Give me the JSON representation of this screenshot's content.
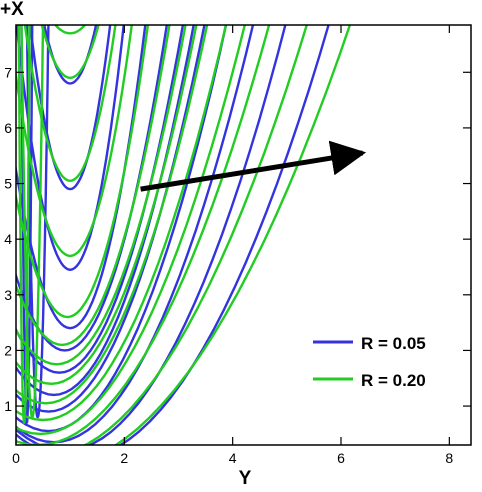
{
  "chart_data": {
    "type": "line",
    "xlabel": "Y",
    "ylabel": "+X",
    "xlim": [
      0,
      8.4
    ],
    "ylim": [
      0.3,
      7.85
    ],
    "x_ticks": [
      "0",
      "2",
      "4",
      "6",
      "8"
    ],
    "y_ticks": [
      "1",
      "2",
      "3",
      "4",
      "5",
      "6",
      "7"
    ],
    "x_tick_values": [
      0,
      2,
      4,
      6,
      8
    ],
    "y_tick_values": [
      1,
      2,
      3,
      4,
      5,
      6,
      7
    ],
    "grid": false,
    "legend_position": "bottom-right",
    "annotation": "arrow pointing up-right, from (2.3, 4.9) to (6.4, 5.55)",
    "series": [
      {
        "name": "R = 0.05",
        "color": "#3333e0",
        "curves": [
          {
            "apex": [
              0.2,
              0.7
            ],
            "half_width_top": 0.1
          },
          {
            "apex": [
              0.4,
              0.8
            ],
            "half_width_top": 0.2
          },
          {
            "apex": [
              1.0,
              6.8
            ],
            "half_width_top": 0.5
          },
          {
            "apex": [
              1.0,
              4.9
            ],
            "half_width_top": 0.75
          },
          {
            "apex": [
              1.0,
              3.45
            ],
            "half_width_top": 1.0
          },
          {
            "apex": [
              1.0,
              2.4
            ],
            "half_width_top": 1.4
          },
          {
            "apex": [
              0.9,
              2.0
            ],
            "half_width_top": 1.9
          },
          {
            "apex": [
              0.8,
              1.6
            ],
            "half_width_top": 2.3
          },
          {
            "apex": [
              0.7,
              1.2
            ],
            "half_width_top": 2.6
          },
          {
            "apex": [
              0.6,
              0.9
            ],
            "half_width_top": 2.9
          },
          {
            "apex": [
              0.6,
              0.55
            ],
            "half_width_top": 3.3
          },
          {
            "apex": [
              0.7,
              0.35
            ],
            "half_width_top": 3.7
          },
          {
            "apex": [
              0.9,
              0.2
            ],
            "half_width_top": 4.1
          },
          {
            "apex": [
              1.1,
              0.05
            ],
            "half_width_top": 4.7
          }
        ]
      },
      {
        "name": "R = 0.20",
        "color": "#22cc22",
        "curves": [
          {
            "apex": [
              0.15,
              0.7
            ],
            "half_width_top": 0.1
          },
          {
            "apex": [
              0.3,
              0.8
            ],
            "half_width_top": 0.2
          },
          {
            "apex": [
              1.0,
              7.7
            ],
            "half_width_top": 0.35
          },
          {
            "apex": [
              1.0,
              6.9
            ],
            "half_width_top": 0.55
          },
          {
            "apex": [
              1.0,
              5.05
            ],
            "half_width_top": 0.85
          },
          {
            "apex": [
              1.0,
              3.7
            ],
            "half_width_top": 1.15
          },
          {
            "apex": [
              0.95,
              2.6
            ],
            "half_width_top": 1.5
          },
          {
            "apex": [
              0.85,
              2.1
            ],
            "half_width_top": 2.0
          },
          {
            "apex": [
              0.75,
              1.75
            ],
            "half_width_top": 2.4
          },
          {
            "apex": [
              0.65,
              1.4
            ],
            "half_width_top": 2.7
          },
          {
            "apex": [
              0.55,
              1.05
            ],
            "half_width_top": 3.0
          },
          {
            "apex": [
              0.5,
              0.75
            ],
            "half_width_top": 3.4
          },
          {
            "apex": [
              0.45,
              0.5
            ],
            "half_width_top": 3.8
          },
          {
            "apex": [
              0.4,
              0.3
            ],
            "half_width_top": 4.3
          },
          {
            "apex": [
              0.5,
              0.1
            ],
            "half_width_top": 4.9
          },
          {
            "apex": [
              0.6,
              -0.1
            ],
            "half_width_top": 5.6
          }
        ]
      }
    ]
  }
}
